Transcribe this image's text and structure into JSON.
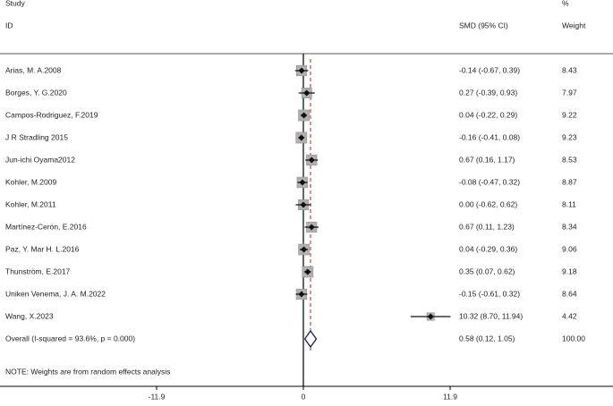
{
  "chart_data": {
    "type": "forest",
    "headers": {
      "study": "Study",
      "id": "ID",
      "effect": "SMD (95% CI)",
      "percent": "%",
      "weight": "Weight"
    },
    "studies": [
      {
        "name": "Arias, M. A.2008",
        "smd": -0.14,
        "lower": -0.67,
        "upper": 0.39,
        "weight": 8.43,
        "ci_label": "-0.14 (-0.67, 0.39)"
      },
      {
        "name": "Borges, Y. G.2020",
        "smd": 0.27,
        "lower": -0.39,
        "upper": 0.93,
        "weight": 7.97,
        "ci_label": "0.27 (-0.39, 0.93)"
      },
      {
        "name": "Campos-Rodriguez, F.2019",
        "smd": 0.04,
        "lower": -0.22,
        "upper": 0.29,
        "weight": 9.22,
        "ci_label": "0.04 (-0.22, 0.29)"
      },
      {
        "name": "J R Stradling 2015",
        "smd": -0.16,
        "lower": -0.41,
        "upper": 0.08,
        "weight": 9.23,
        "ci_label": "-0.16 (-0.41, 0.08)"
      },
      {
        "name": "Jun-ichi Oyama2012",
        "smd": 0.67,
        "lower": 0.16,
        "upper": 1.17,
        "weight": 8.53,
        "ci_label": "0.67 (0.16, 1.17)"
      },
      {
        "name": "Kohler, M.2009",
        "smd": -0.08,
        "lower": -0.47,
        "upper": 0.32,
        "weight": 8.87,
        "ci_label": "-0.08 (-0.47, 0.32)"
      },
      {
        "name": "Kohler, M.2011",
        "smd": 0.0,
        "lower": -0.62,
        "upper": 0.62,
        "weight": 8.11,
        "ci_label": "0.00 (-0.62, 0.62)"
      },
      {
        "name": "Martínez-Cerón, E.2016",
        "smd": 0.67,
        "lower": 0.11,
        "upper": 1.23,
        "weight": 8.34,
        "ci_label": "0.67 (0.11, 1.23)"
      },
      {
        "name": "Paz, Y. Mar H. L.2016",
        "smd": 0.04,
        "lower": -0.29,
        "upper": 0.36,
        "weight": 9.06,
        "ci_label": "0.04 (-0.29, 0.36)"
      },
      {
        "name": "Thunström, E.2017",
        "smd": 0.35,
        "lower": 0.07,
        "upper": 0.62,
        "weight": 9.18,
        "ci_label": "0.35 (0.07, 0.62)"
      },
      {
        "name": "Uniken Venema, J. A. M.2022",
        "smd": -0.15,
        "lower": -0.61,
        "upper": 0.32,
        "weight": 8.64,
        "ci_label": "-0.15 (-0.61, 0.32)"
      },
      {
        "name": "Wang, X.2023",
        "smd": 10.32,
        "lower": 8.7,
        "upper": 11.94,
        "weight": 4.42,
        "ci_label": "10.32 (8.70, 11.94)"
      }
    ],
    "overall": {
      "name": "Overall  (I-squared = 93.6%, p = 0.000)",
      "smd": 0.58,
      "lower": 0.12,
      "upper": 1.05,
      "weight": 100,
      "weight_label": "100.00",
      "ci_label": "0.58 (0.12, 1.05)"
    },
    "note": "NOTE: Weights are from random effects analysis",
    "xlim": [
      -24.6,
      24.6
    ],
    "xticks": [
      -11.9,
      0,
      11.9
    ],
    "box_color": "#b0b0b0",
    "marker_color": "#111111",
    "overall_color": "#1a1a5e",
    "ref_line_color": "#b22222"
  }
}
